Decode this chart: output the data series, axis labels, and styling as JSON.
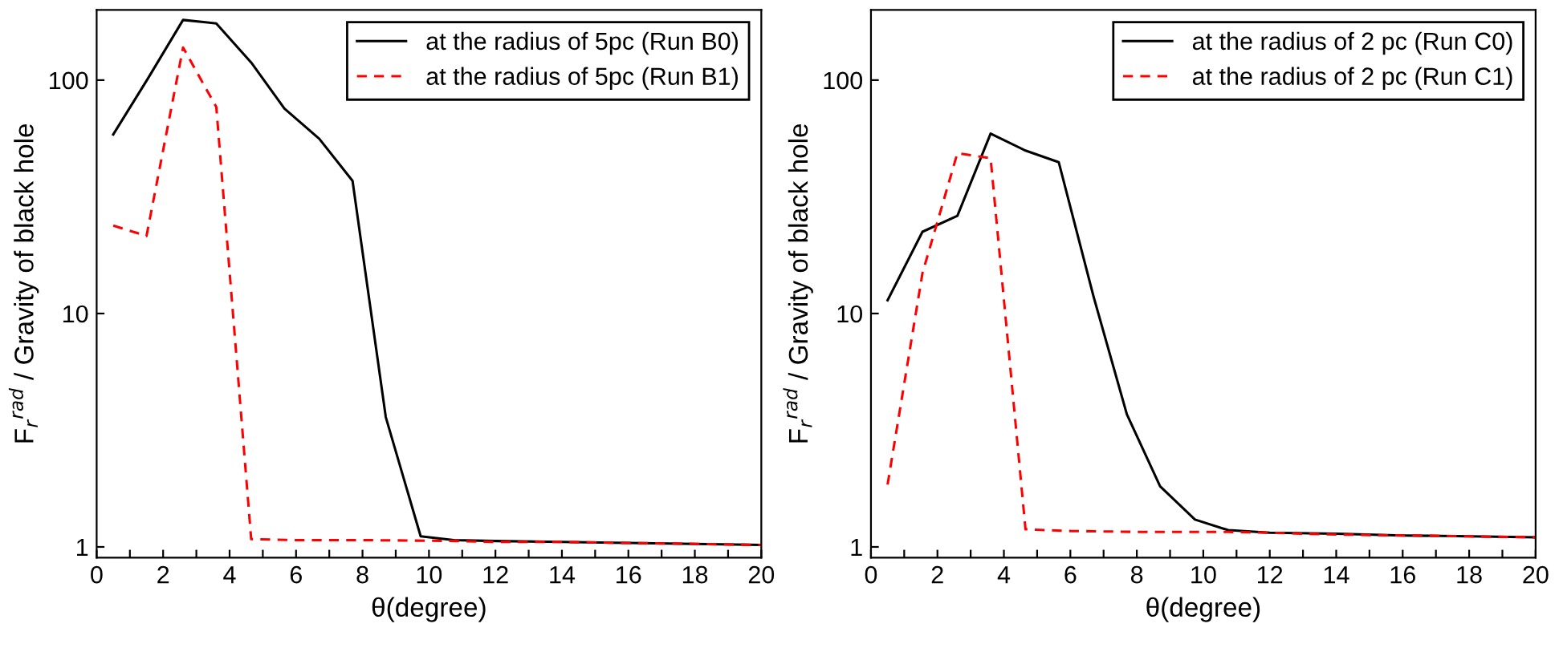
{
  "chart_data": [
    {
      "type": "line",
      "xlabel": "θ(degree)",
      "ylabel": "F$_{r}$$^{rad}$ / Gravity of black hole",
      "log": "y",
      "legend": "top right",
      "grid": false,
      "xlim": [
        0,
        20
      ],
      "xticks": [
        0,
        {
          "value": 1,
          "label": null
        },
        2,
        {
          "value": 3,
          "label": null
        },
        4,
        {
          "value": 5,
          "label": null
        },
        6,
        {
          "value": 7,
          "label": null
        },
        8,
        {
          "value": 9,
          "label": null
        },
        10,
        {
          "value": 11,
          "label": null
        },
        12,
        {
          "value": 13,
          "label": null
        },
        14,
        {
          "value": 15,
          "label": null
        },
        16,
        {
          "value": 17,
          "label": null
        },
        18,
        {
          "value": 19,
          "label": null
        },
        20
      ],
      "ylim": [
        0.9,
        200
      ],
      "yticks": [
        1,
        10,
        100
      ],
      "series": [
        {
          "name": "at the radius of 5pc (Run B0)",
          "color": "#000000",
          "line_style": "solid",
          "x": [
            0.5,
            1.55,
            2.6,
            3.6,
            4.65,
            5.65,
            6.7,
            7.7,
            8.7,
            9.75,
            10.75,
            12,
            14,
            16,
            18,
            20
          ],
          "values": [
            58.5,
            102,
            181,
            175,
            119,
            75.5,
            56,
            37,
            3.6,
            1.11,
            1.07,
            1.06,
            1.05,
            1.04,
            1.03,
            1.02
          ]
        },
        {
          "name": "at the radius of 5pc (Run B1)",
          "color": "#ff0000",
          "line_style": "dashed",
          "x": [
            0.5,
            1.5,
            2.6,
            3.6,
            4.65,
            6,
            8,
            10.75,
            12,
            14,
            16,
            18,
            20
          ],
          "values": [
            23.8,
            21.5,
            138,
            76.7,
            1.08,
            1.07,
            1.07,
            1.06,
            1.05,
            1.05,
            1.04,
            1.03,
            1.02
          ]
        }
      ]
    },
    {
      "type": "line",
      "xlabel": "θ(degree)",
      "ylabel": "F$_{r}$$^{rad}$ / Gravity of black hole",
      "log": "y",
      "legend": "top right",
      "grid": false,
      "xlim": [
        0,
        20
      ],
      "xticks": [
        0,
        {
          "value": 1,
          "label": null
        },
        2,
        {
          "value": 3,
          "label": null
        },
        4,
        {
          "value": 5,
          "label": null
        },
        6,
        {
          "value": 7,
          "label": null
        },
        8,
        {
          "value": 9,
          "label": null
        },
        10,
        {
          "value": 11,
          "label": null
        },
        12,
        {
          "value": 13,
          "label": null
        },
        14,
        {
          "value": 15,
          "label": null
        },
        16,
        {
          "value": 17,
          "label": null
        },
        18,
        {
          "value": 19,
          "label": null
        },
        20
      ],
      "ylim": [
        0.9,
        200
      ],
      "yticks": [
        1,
        10,
        100
      ],
      "series": [
        {
          "name": "at the radius of 2 pc (Run C0)",
          "color": "#000000",
          "line_style": "solid",
          "x": [
            0.5,
            1.55,
            2.6,
            3.6,
            4.65,
            5.65,
            6.7,
            7.7,
            8.7,
            9.75,
            10.75,
            12,
            14,
            16,
            18,
            20
          ],
          "values": [
            11.4,
            22.4,
            26.2,
            59,
            49.9,
            44.5,
            11.8,
            3.7,
            1.82,
            1.31,
            1.18,
            1.15,
            1.14,
            1.12,
            1.11,
            1.1
          ]
        },
        {
          "name": "at the radius of 2 pc (Run C1)",
          "color": "#ff0000",
          "line_style": "dashed",
          "x": [
            0.5,
            1.55,
            2.6,
            3.6,
            4.65,
            6,
            8,
            10.75,
            12,
            14,
            16,
            18,
            20
          ],
          "values": [
            1.85,
            14.9,
            48.6,
            46.3,
            1.19,
            1.17,
            1.16,
            1.16,
            1.15,
            1.13,
            1.12,
            1.11,
            1.1
          ]
        }
      ]
    }
  ]
}
